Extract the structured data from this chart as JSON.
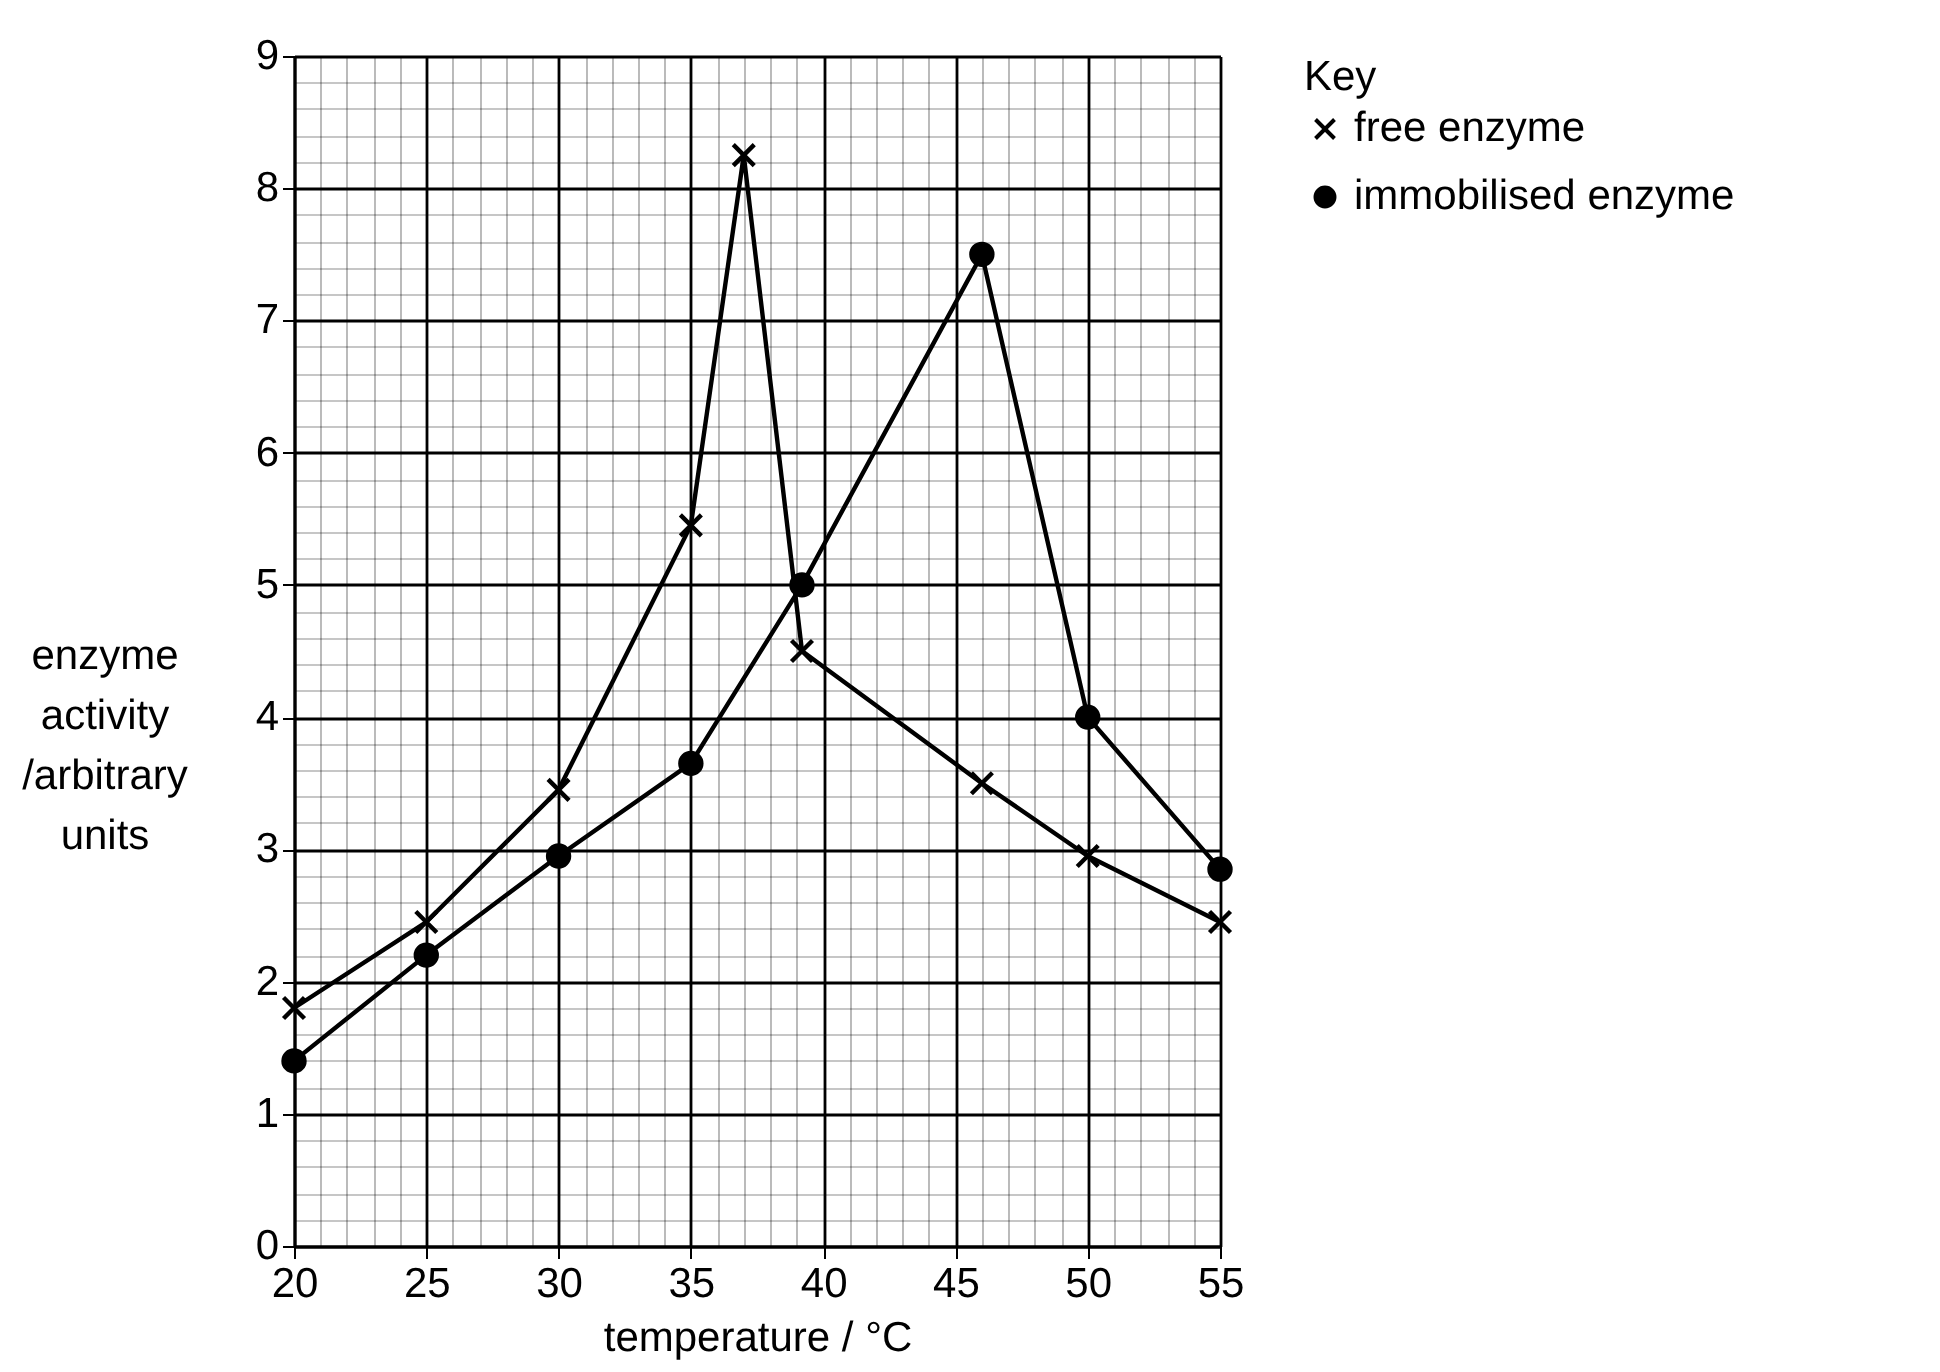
{
  "chart_data": {
    "type": "line",
    "xlabel": "temperature / °C",
    "ylabel": "enzyme activity /arbitrary units",
    "legend_title": "Key",
    "xlim": [
      20,
      55
    ],
    "xticks": [
      20,
      25,
      30,
      35,
      40,
      45,
      50,
      55
    ],
    "ylim": [
      0,
      9
    ],
    "yticks": [
      0,
      1,
      2,
      3,
      4,
      5,
      6,
      7,
      8,
      9
    ],
    "grid": true,
    "legend": "top right",
    "series": [
      {
        "name": "free enzyme",
        "color": "#000000",
        "marker": "cross",
        "x": [
          20,
          25,
          30,
          35,
          37,
          39.2,
          46,
          50,
          55
        ],
        "values": [
          1.8,
          2.45,
          3.45,
          5.45,
          8.25,
          4.5,
          3.5,
          2.95,
          2.45
        ]
      },
      {
        "name": "immobilised enzyme",
        "color": "#000000",
        "marker": "circle",
        "x": [
          20,
          25,
          30,
          35,
          39.2,
          46,
          50,
          55
        ],
        "values": [
          1.4,
          2.2,
          2.95,
          3.65,
          5.0,
          7.5,
          4.0,
          2.85
        ]
      }
    ]
  }
}
